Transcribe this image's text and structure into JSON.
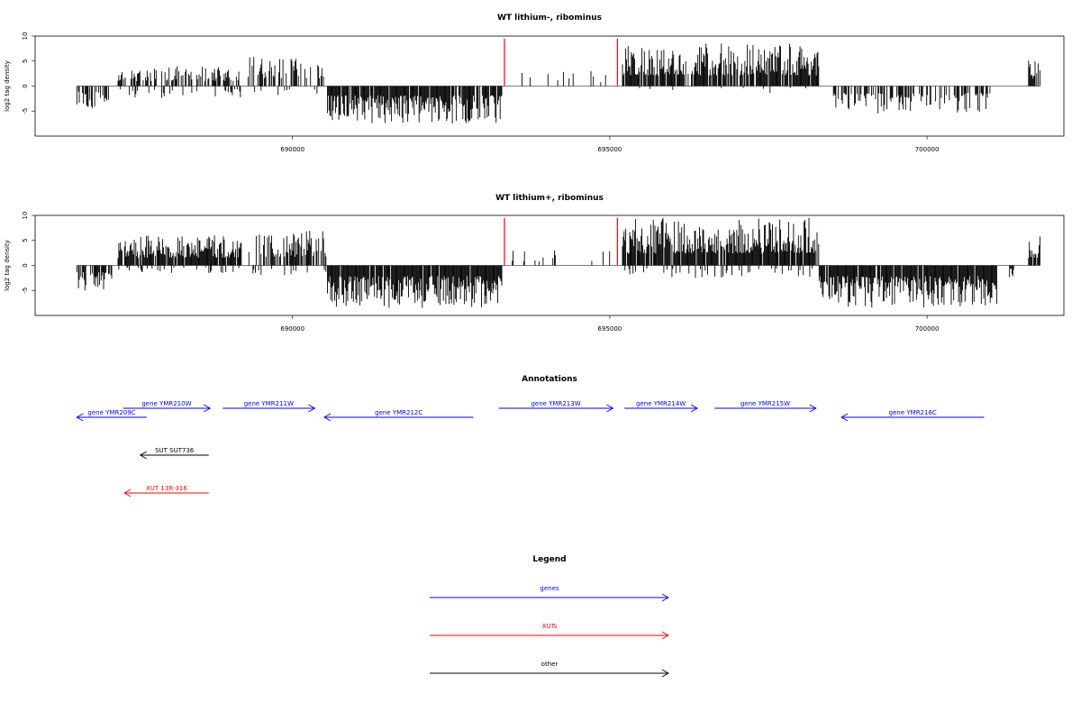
{
  "chart_data": [
    {
      "type": "bar",
      "title": "WT lithium-, ribominus",
      "ylabel": "log2 tag density",
      "xlim": [
        686000,
        702100
      ],
      "ylim": [
        -10,
        10
      ],
      "x_ticks": [
        690000,
        695000,
        700000
      ],
      "x_tick_labels": [
        "690000",
        "695000",
        "700000"
      ],
      "y_ticks": [
        -5,
        0,
        5,
        10
      ],
      "y_tick_labels": [
        "-5",
        "0",
        "5",
        "10"
      ],
      "highlight_color": "#ff0000",
      "bar_color": "#000000",
      "highlight_bars": [
        {
          "x": 693340,
          "y": 9.5
        },
        {
          "x": 695120,
          "y": 9.5
        }
      ],
      "segments": [
        {
          "from": 686600,
          "to": 687100,
          "sign": -1,
          "max": 4.5,
          "density": 0.5
        },
        {
          "from": 687250,
          "to": 689200,
          "sign": 1,
          "max": 4.0,
          "density": 0.5
        },
        {
          "from": 687250,
          "to": 689200,
          "sign": -1,
          "max": 2.5,
          "density": 0.15
        },
        {
          "from": 689300,
          "to": 690500,
          "sign": 1,
          "max": 6.0,
          "density": 0.45
        },
        {
          "from": 689300,
          "to": 690500,
          "sign": -1,
          "max": 2.0,
          "density": 0.08
        },
        {
          "from": 690550,
          "to": 693300,
          "sign": -1,
          "max": 7.5,
          "density": 0.9
        },
        {
          "from": 693400,
          "to": 695000,
          "sign": 1,
          "max": 3.0,
          "density": 0.08
        },
        {
          "from": 695200,
          "to": 698300,
          "sign": 1,
          "max": 8.5,
          "density": 0.85
        },
        {
          "from": 695200,
          "to": 698300,
          "sign": -1,
          "max": 1.5,
          "density": 0.05
        },
        {
          "from": 698500,
          "to": 701000,
          "sign": -1,
          "max": 5.5,
          "density": 0.55
        },
        {
          "from": 701600,
          "to": 701780,
          "sign": 1,
          "max": 6.0,
          "density": 0.9
        }
      ]
    },
    {
      "type": "bar",
      "title": "WT lithium+, ribominus",
      "ylabel": "log2 tag density",
      "xlim": [
        686000,
        702100
      ],
      "ylim": [
        -10,
        10
      ],
      "x_ticks": [
        690000,
        695000,
        700000
      ],
      "x_tick_labels": [
        "690000",
        "695000",
        "700000"
      ],
      "y_ticks": [
        -5,
        0,
        5,
        10
      ],
      "y_tick_labels": [
        "-5",
        "0",
        "5",
        "10"
      ],
      "highlight_color": "#ff0000",
      "bar_color": "#000000",
      "highlight_bars": [
        {
          "x": 693340,
          "y": 9.5
        },
        {
          "x": 695120,
          "y": 9.5
        }
      ],
      "segments": [
        {
          "from": 686600,
          "to": 687150,
          "sign": -1,
          "max": 5.0,
          "density": 0.7
        },
        {
          "from": 687250,
          "to": 689200,
          "sign": 1,
          "max": 6.0,
          "density": 0.9
        },
        {
          "from": 687250,
          "to": 689200,
          "sign": -1,
          "max": 1.5,
          "density": 0.15
        },
        {
          "from": 689300,
          "to": 690550,
          "sign": 1,
          "max": 7.0,
          "density": 0.6
        },
        {
          "from": 689300,
          "to": 690550,
          "sign": -1,
          "max": 2.0,
          "density": 0.15
        },
        {
          "from": 690550,
          "to": 693300,
          "sign": -1,
          "max": 8.5,
          "density": 0.95
        },
        {
          "from": 693400,
          "to": 695000,
          "sign": 1,
          "max": 3.0,
          "density": 0.15
        },
        {
          "from": 695200,
          "to": 698300,
          "sign": 1,
          "max": 9.5,
          "density": 0.9
        },
        {
          "from": 695200,
          "to": 698300,
          "sign": -1,
          "max": 2.5,
          "density": 0.15
        },
        {
          "from": 698300,
          "to": 701100,
          "sign": -1,
          "max": 8.5,
          "density": 0.95
        },
        {
          "from": 701300,
          "to": 701380,
          "sign": -1,
          "max": 2.5,
          "density": 0.9
        },
        {
          "from": 701600,
          "to": 701780,
          "sign": 1,
          "max": 6.0,
          "density": 0.9
        }
      ]
    }
  ],
  "annotations": {
    "title": "Annotations",
    "xlim": [
      686000,
      702100
    ],
    "features": [
      {
        "label": "gene YMR209C",
        "start": 686600,
        "end": 687700,
        "strand": "-",
        "color": "#0000ff",
        "row": 0
      },
      {
        "label": "gene YMR210W",
        "start": 687330,
        "end": 688700,
        "strand": "+",
        "color": "#0000ff",
        "row": 0
      },
      {
        "label": "gene YMR211W",
        "start": 688900,
        "end": 690350,
        "strand": "+",
        "color": "#0000ff",
        "row": 0
      },
      {
        "label": "gene YMR212C",
        "start": 690500,
        "end": 692850,
        "strand": "-",
        "color": "#0000ff",
        "row": 0
      },
      {
        "label": "gene YMR213W",
        "start": 693250,
        "end": 695050,
        "strand": "+",
        "color": "#0000ff",
        "row": 0
      },
      {
        "label": "gene YMR214W",
        "start": 695230,
        "end": 696380,
        "strand": "+",
        "color": "#0000ff",
        "row": 0
      },
      {
        "label": "gene YMR215W",
        "start": 696650,
        "end": 698250,
        "strand": "+",
        "color": "#0000ff",
        "row": 0
      },
      {
        "label": "gene YMR216C",
        "start": 698650,
        "end": 700900,
        "strand": "-",
        "color": "#0000ff",
        "row": 0
      },
      {
        "label": "SUT SUT736",
        "start": 687600,
        "end": 688680,
        "strand": "-",
        "color": "#000000",
        "row": 1
      },
      {
        "label": "XUT 13R-316",
        "start": 687350,
        "end": 688680,
        "strand": "-",
        "color": "#ff0000",
        "row": 2
      }
    ]
  },
  "legend": {
    "title": "Legend",
    "items": [
      {
        "label": "genes",
        "color": "#0000ff"
      },
      {
        "label": "XUTs",
        "color": "#ff0000"
      },
      {
        "label": "other",
        "color": "#000000"
      }
    ]
  }
}
